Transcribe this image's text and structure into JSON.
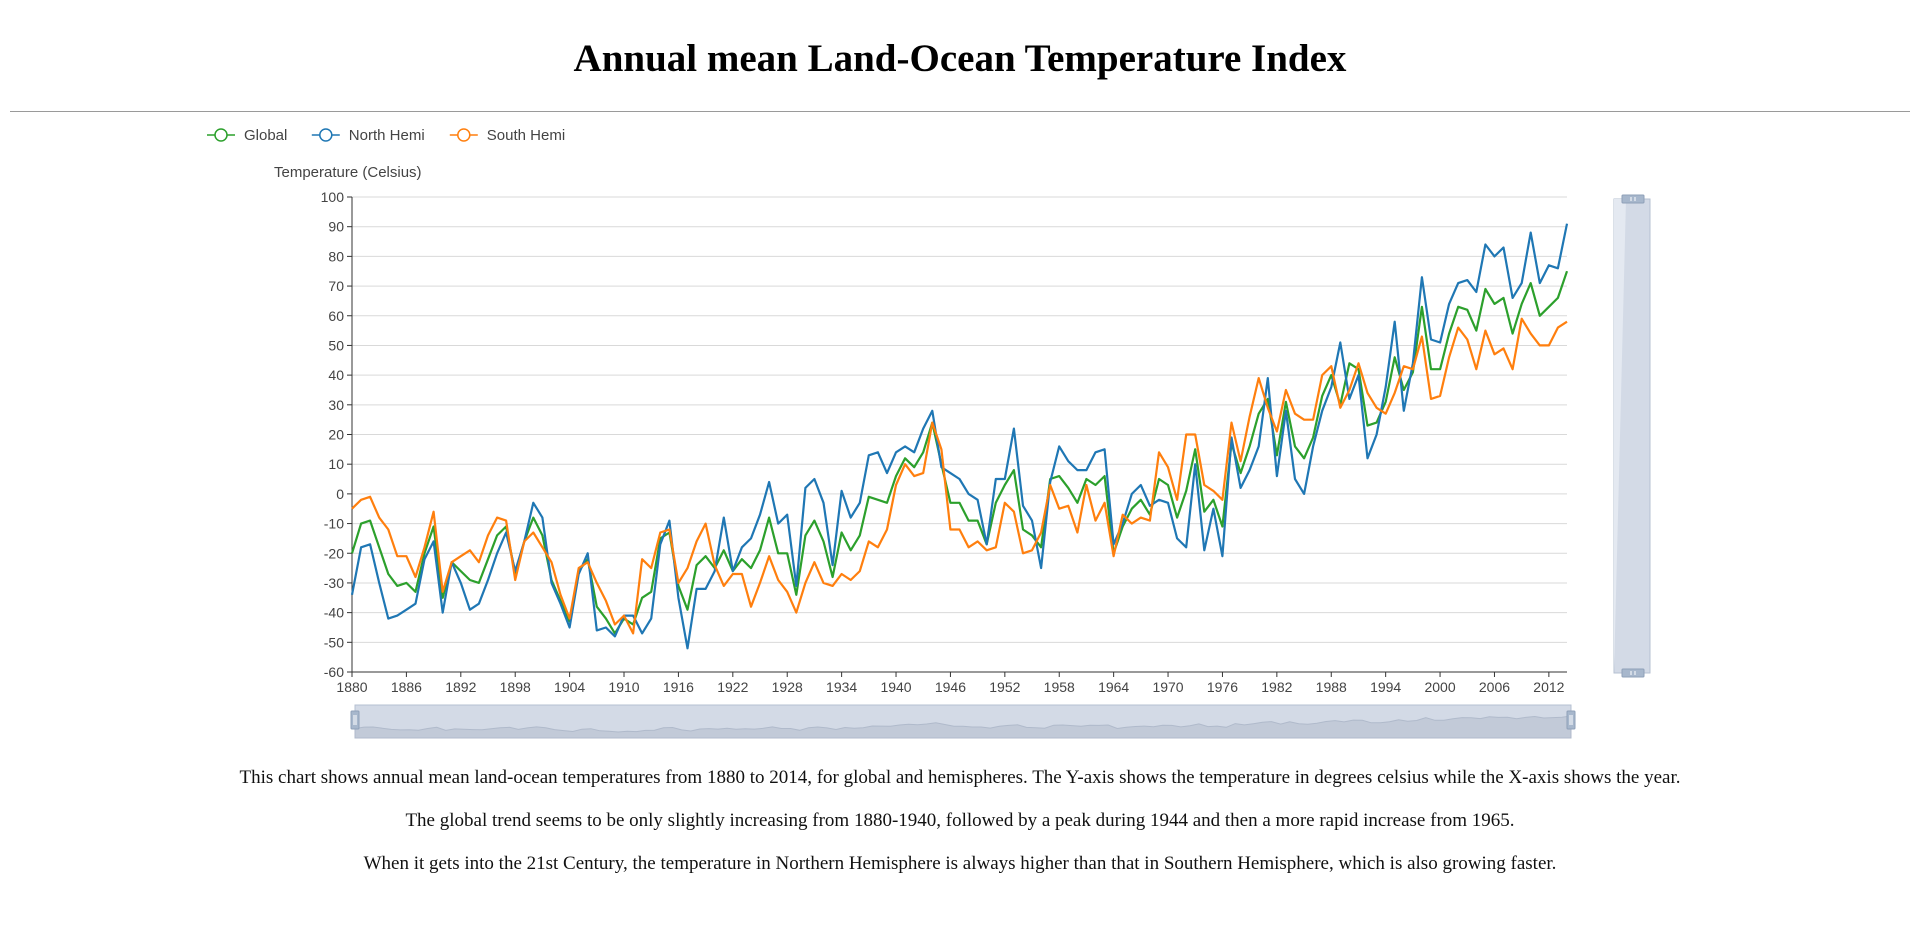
{
  "page": {
    "title": "Annual mean Land-Ocean Temperature Index",
    "descriptions": [
      "This chart shows annual mean land-ocean temperatures from 1880 to 2014, for global and hemispheres. The Y-axis shows the temperature in degrees celsius while the X-axis shows the year.",
      "The global trend seems to be only slightly increasing from 1880-1940, followed by a peak during 1944 and then a more rapid increase from 1965.",
      "When it gets into the 21st Century, the temperature in Northern Hemisphere is always higher than that in Southern Hemisphere, which is also growing faster."
    ]
  },
  "chart_data": {
    "type": "line",
    "title": "Annual mean Land-Ocean Temperature Index",
    "ylabel": "Temperature (Celsius)",
    "xlabel": "",
    "ylim": [
      -60,
      100
    ],
    "xlim": [
      1880,
      2014
    ],
    "yticks": [
      -60,
      -50,
      -40,
      -30,
      -20,
      -10,
      0,
      10,
      20,
      30,
      40,
      50,
      60,
      70,
      80,
      90,
      100
    ],
    "xticks": [
      1880,
      1886,
      1892,
      1898,
      1904,
      1910,
      1916,
      1922,
      1928,
      1934,
      1940,
      1946,
      1952,
      1958,
      1964,
      1970,
      1976,
      1982,
      1988,
      1994,
      2000,
      2006,
      2012
    ],
    "grid": "horizontal",
    "legend_position": "top-left",
    "x": [
      1880,
      1881,
      1882,
      1883,
      1884,
      1885,
      1886,
      1887,
      1888,
      1889,
      1890,
      1891,
      1892,
      1893,
      1894,
      1895,
      1896,
      1897,
      1898,
      1899,
      1900,
      1901,
      1902,
      1903,
      1904,
      1905,
      1906,
      1907,
      1908,
      1909,
      1910,
      1911,
      1912,
      1913,
      1914,
      1915,
      1916,
      1917,
      1918,
      1919,
      1920,
      1921,
      1922,
      1923,
      1924,
      1925,
      1926,
      1927,
      1928,
      1929,
      1930,
      1931,
      1932,
      1933,
      1934,
      1935,
      1936,
      1937,
      1938,
      1939,
      1940,
      1941,
      1942,
      1943,
      1944,
      1945,
      1946,
      1947,
      1948,
      1949,
      1950,
      1951,
      1952,
      1953,
      1954,
      1955,
      1956,
      1957,
      1958,
      1959,
      1960,
      1961,
      1962,
      1963,
      1964,
      1965,
      1966,
      1967,
      1968,
      1969,
      1970,
      1971,
      1972,
      1973,
      1974,
      1975,
      1976,
      1977,
      1978,
      1979,
      1980,
      1981,
      1982,
      1983,
      1984,
      1985,
      1986,
      1987,
      1988,
      1989,
      1990,
      1991,
      1992,
      1993,
      1994,
      1995,
      1996,
      1997,
      1998,
      1999,
      2000,
      2001,
      2002,
      2003,
      2004,
      2005,
      2006,
      2007,
      2008,
      2009,
      2010,
      2011,
      2012,
      2013,
      2014
    ],
    "series": [
      {
        "name": "Global",
        "color": "#2ca02c",
        "values": [
          -20,
          -10,
          -9,
          -18,
          -27,
          -31,
          -30,
          -33,
          -20,
          -11,
          -35,
          -23,
          -26,
          -29,
          -30,
          -22,
          -14,
          -11,
          -27,
          -16,
          -8,
          -14,
          -29,
          -36,
          -43,
          -26,
          -22,
          -38,
          -42,
          -47,
          -42,
          -44,
          -35,
          -33,
          -15,
          -13,
          -31,
          -39,
          -24,
          -21,
          -25,
          -19,
          -26,
          -22,
          -25,
          -19,
          -8,
          -20,
          -20,
          -34,
          -14,
          -9,
          -16,
          -28,
          -13,
          -19,
          -14,
          -1,
          -2,
          -3,
          6,
          12,
          9,
          14,
          24,
          10,
          -3,
          -3,
          -9,
          -9,
          -17,
          -3,
          3,
          8,
          -12,
          -14,
          -18,
          5,
          6,
          2,
          -3,
          5,
          3,
          6,
          -20,
          -11,
          -5,
          -2,
          -7,
          5,
          3,
          -8,
          1,
          15,
          -6,
          -2,
          -11,
          17,
          7,
          16,
          27,
          32,
          13,
          31,
          16,
          12,
          19,
          33,
          40,
          30,
          44,
          42,
          23,
          24,
          31,
          46,
          35,
          41,
          63,
          42,
          42,
          54,
          63,
          62,
          55,
          69,
          64,
          66,
          54,
          64,
          71,
          60,
          63,
          66,
          75
        ]
      },
      {
        "name": "North Hemi",
        "color": "#1f77b4",
        "values": [
          -34,
          -18,
          -17,
          -30,
          -42,
          -41,
          -39,
          -37,
          -22,
          -16,
          -40,
          -23,
          -30,
          -39,
          -37,
          -29,
          -20,
          -13,
          -26,
          -16,
          -3,
          -8,
          -30,
          -37,
          -45,
          -27,
          -20,
          -46,
          -45,
          -48,
          -41,
          -41,
          -47,
          -42,
          -17,
          -9,
          -35,
          -52,
          -32,
          -32,
          -26,
          -8,
          -26,
          -18,
          -15,
          -7,
          4,
          -10,
          -7,
          -31,
          2,
          5,
          -3,
          -24,
          1,
          -8,
          -3,
          13,
          14,
          7,
          14,
          16,
          14,
          22,
          28,
          9,
          7,
          5,
          0,
          -2,
          -17,
          5,
          5,
          22,
          -4,
          -9,
          -25,
          4,
          16,
          11,
          8,
          8,
          14,
          15,
          -17,
          -10,
          0,
          3,
          -4,
          -2,
          -3,
          -15,
          -18,
          10,
          -19,
          -5,
          -21,
          19,
          2,
          8,
          16,
          39,
          6,
          28,
          5,
          0,
          16,
          28,
          36,
          51,
          32,
          40,
          12,
          20,
          36,
          58,
          28,
          44,
          73,
          52,
          51,
          64,
          71,
          72,
          68,
          84,
          80,
          83,
          66,
          71,
          88,
          71,
          77,
          76,
          91
        ]
      },
      {
        "name": "South Hemi",
        "color": "#ff7f0e",
        "values": [
          -5,
          -2,
          -1,
          -8,
          -12,
          -21,
          -21,
          -28,
          -18,
          -6,
          -33,
          -23,
          -21,
          -19,
          -23,
          -14,
          -8,
          -9,
          -29,
          -16,
          -13,
          -18,
          -23,
          -34,
          -42,
          -25,
          -23,
          -30,
          -36,
          -44,
          -41,
          -47,
          -22,
          -25,
          -13,
          -12,
          -30,
          -25,
          -16,
          -10,
          -24,
          -31,
          -27,
          -27,
          -38,
          -30,
          -21,
          -29,
          -33,
          -40,
          -30,
          -23,
          -30,
          -31,
          -27,
          -29,
          -26,
          -16,
          -18,
          -12,
          3,
          10,
          6,
          7,
          24,
          15,
          -12,
          -12,
          -18,
          -16,
          -19,
          -18,
          -3,
          -6,
          -20,
          -19,
          -13,
          3,
          -5,
          -4,
          -13,
          3,
          -9,
          -3,
          -21,
          -7,
          -10,
          -8,
          -9,
          14,
          9,
          -2,
          20,
          20,
          3,
          1,
          -2,
          24,
          11,
          26,
          39,
          29,
          21,
          35,
          27,
          25,
          25,
          40,
          43,
          29,
          35,
          44,
          34,
          29,
          27,
          34,
          43,
          42,
          53,
          32,
          33,
          46,
          56,
          52,
          42,
          55,
          47,
          49,
          42,
          59,
          54,
          50,
          50,
          56,
          58
        ]
      }
    ]
  }
}
